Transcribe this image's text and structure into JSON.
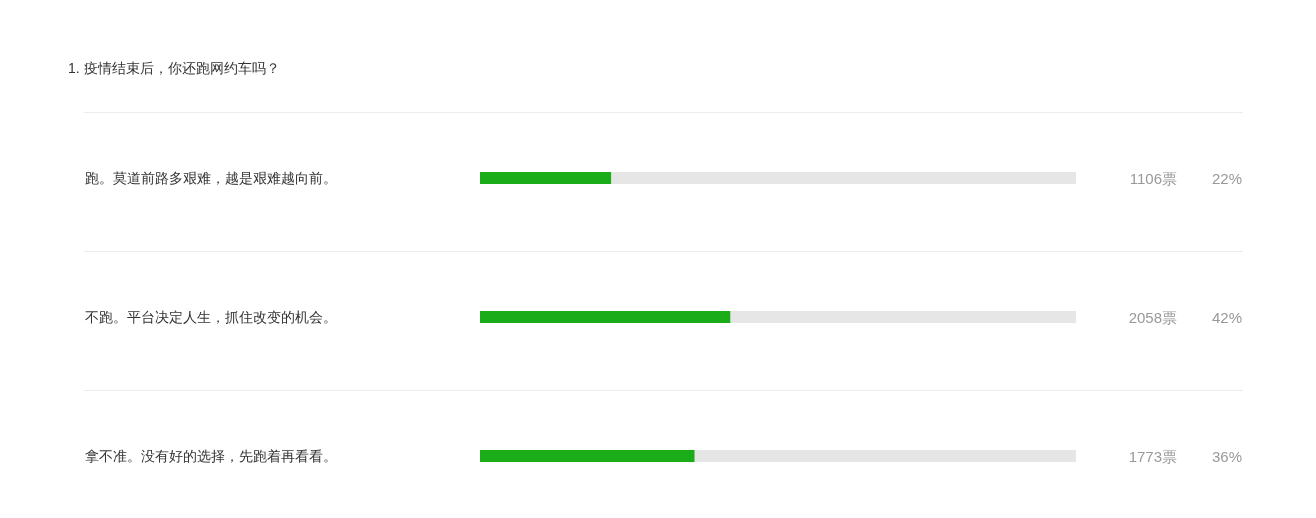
{
  "chart_data": {
    "type": "bar",
    "orientation": "horizontal",
    "title": "1. 疫情结束后，你还跑网约车吗？",
    "categories": [
      "跑。莫道前路多艰难，越是艰难越向前。",
      "不跑。平台决定人生，抓住改变的机会。",
      "拿不准。没有好的选择，先跑着再看看。"
    ],
    "values": [
      22,
      42,
      36
    ],
    "color": "#1aad19",
    "xlim": [
      0,
      100
    ],
    "tick_labels": "y",
    "value_labels": [
      "22%",
      "42%",
      "36%"
    ],
    "annotations": [
      "1106票",
      "2058票",
      "1773票"
    ]
  }
}
